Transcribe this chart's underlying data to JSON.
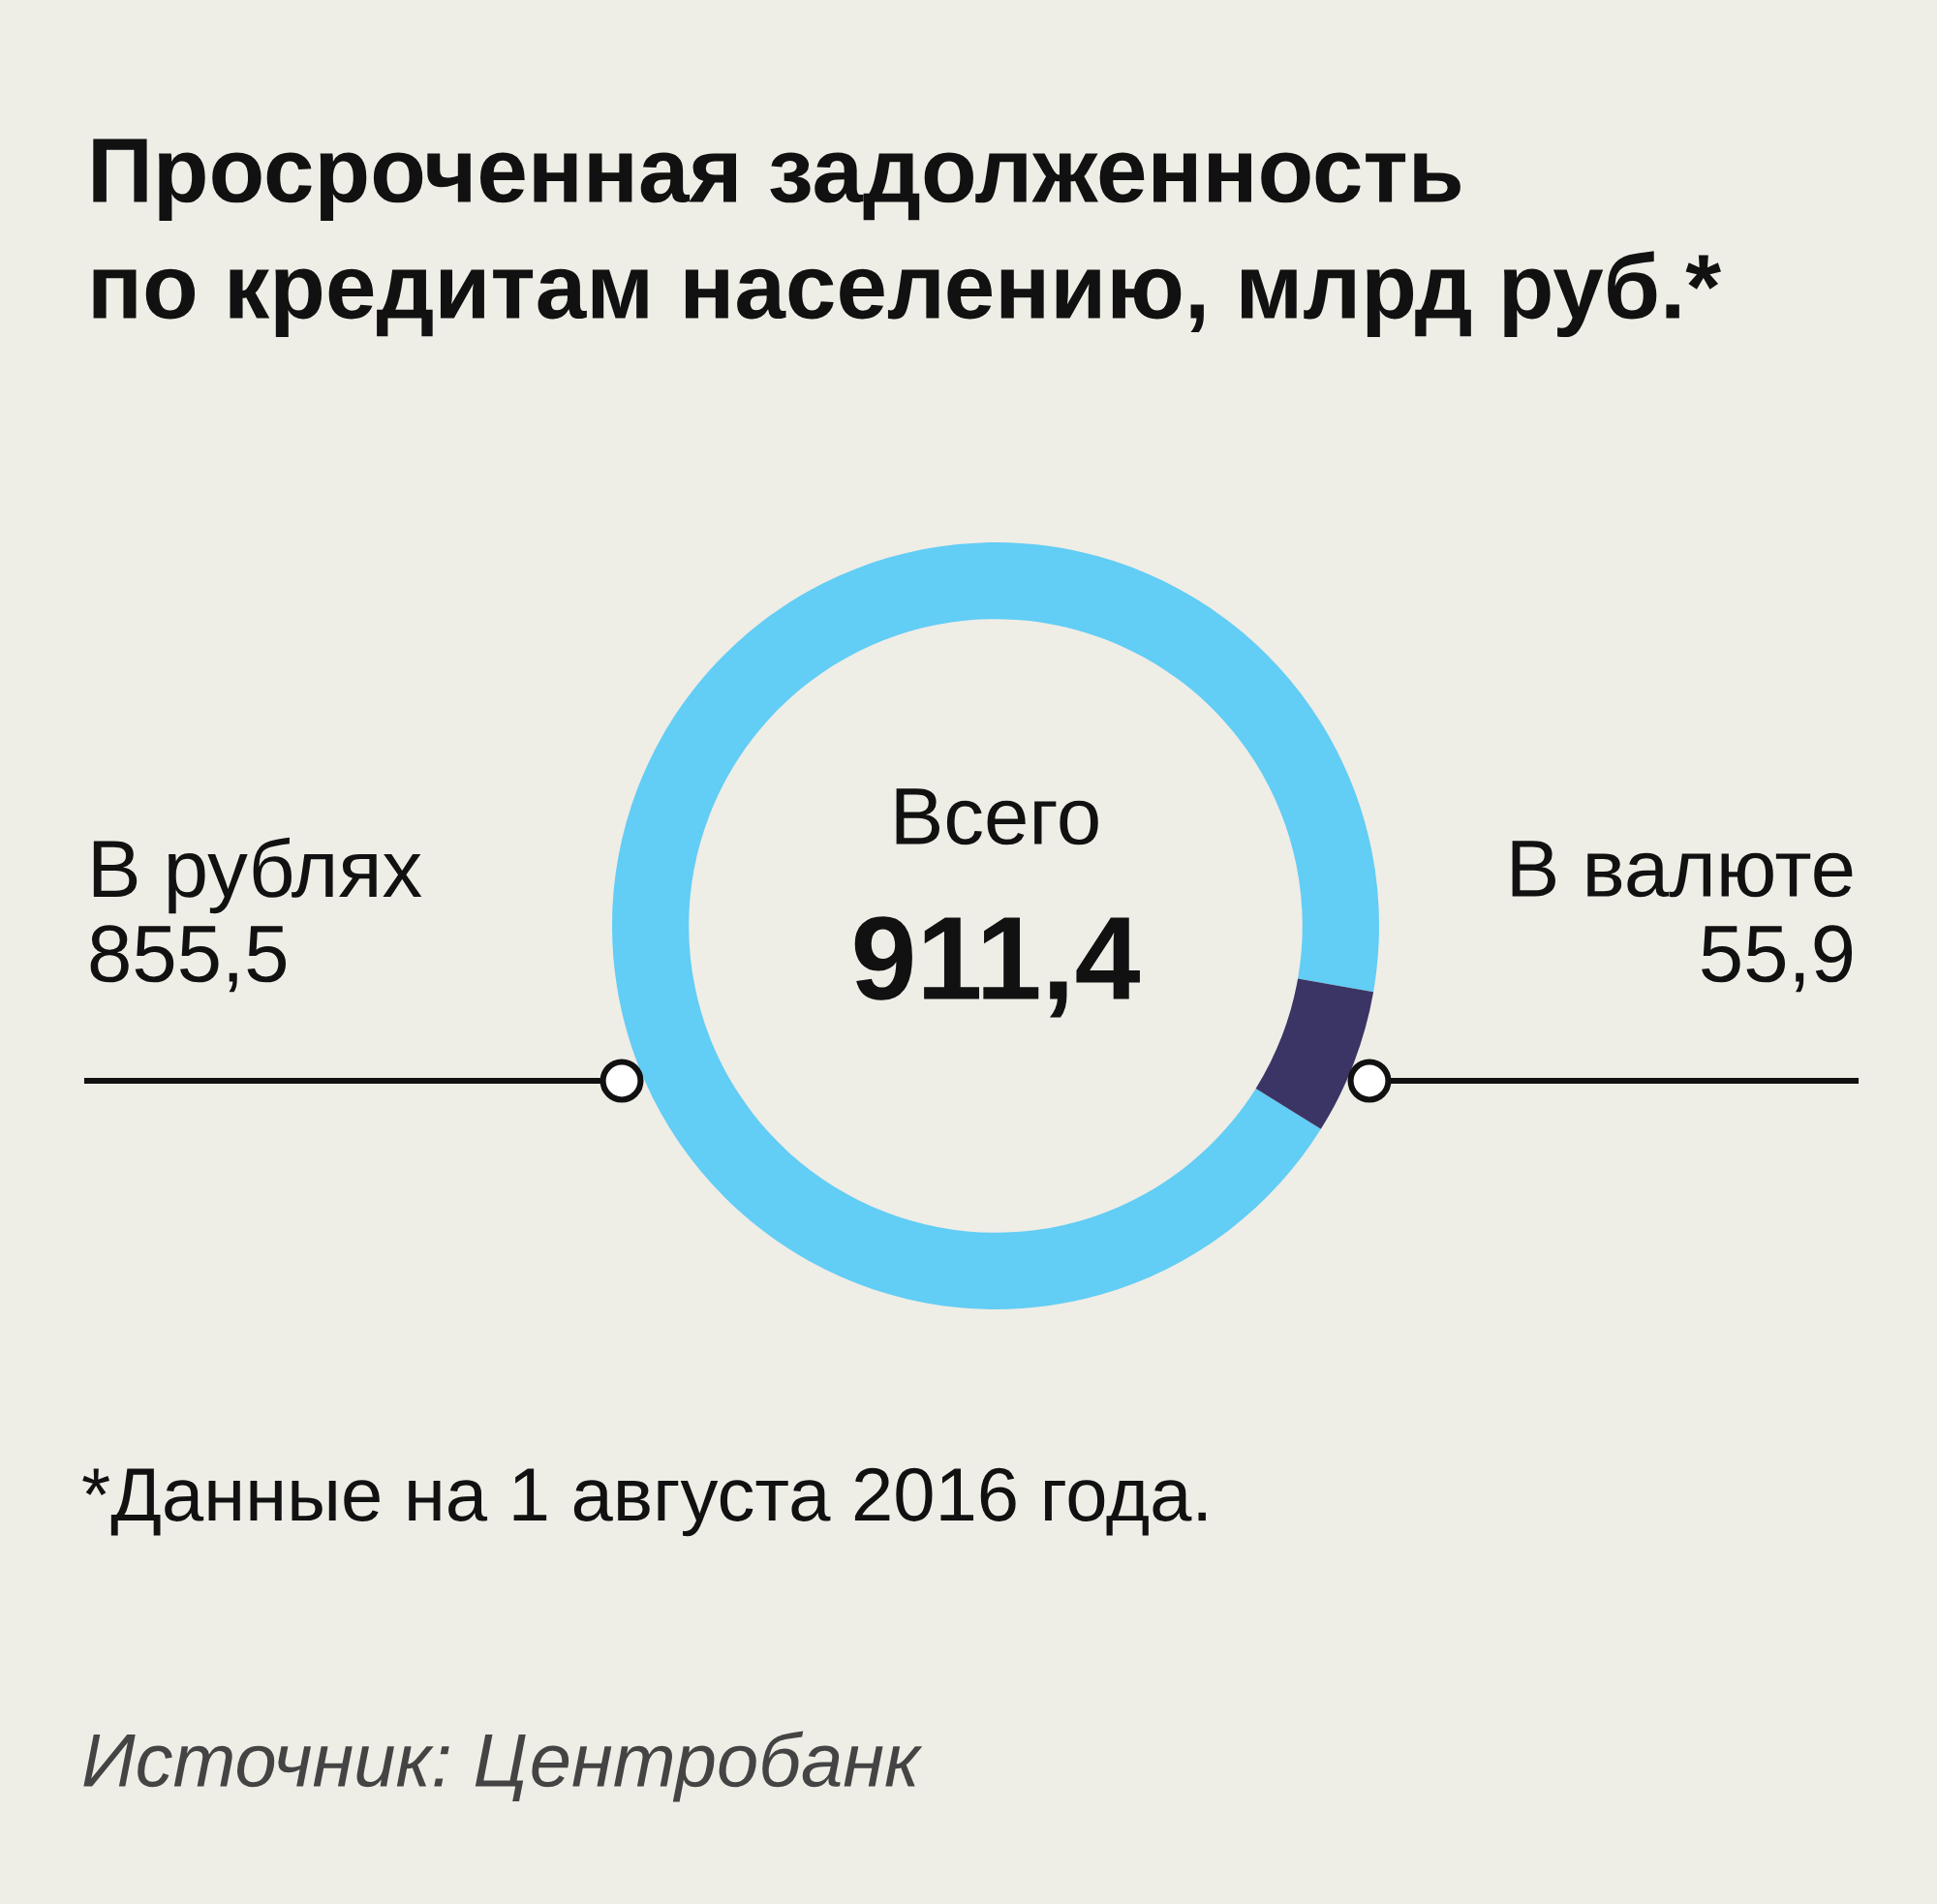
{
  "chart_data": {
    "type": "donut",
    "title": "Просроченная задолженность\nпо кредитам населению, млрд руб.*",
    "categories": [
      "В рублях",
      "В валюте"
    ],
    "values": [
      855.5,
      55.9
    ],
    "colors": [
      "#62cdf5",
      "#3a3564"
    ],
    "value_labels": [
      "855,5",
      "55,9"
    ],
    "annotations": [
      "Всего",
      "911,4",
      "*Данные на 1 августа 2016 года.",
      "Источник: Центробанк"
    ]
  }
}
